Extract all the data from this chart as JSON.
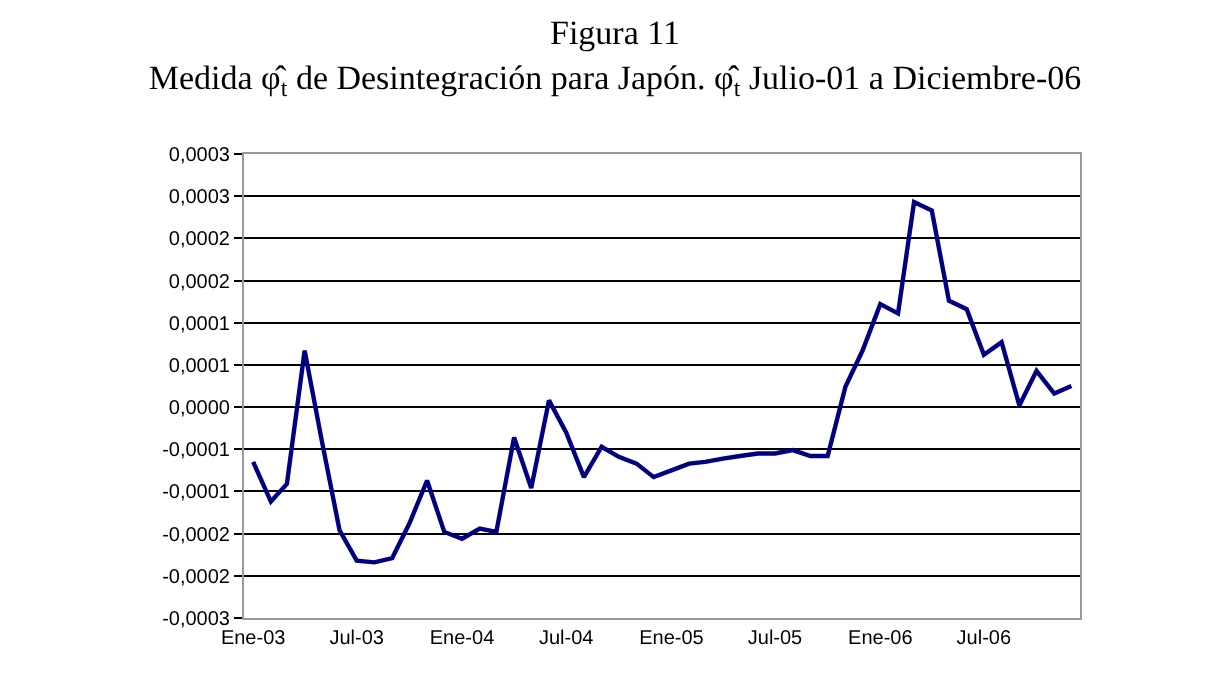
{
  "chart_data": {
    "type": "line",
    "title": "Figura 11",
    "subtitle": "Medida φ̂$_{t}$ de Desintegración para Japón. φ̂$_{t}$ Julio-01 a Diciembre-06",
    "x": [
      "2003-01",
      "2003-02",
      "2003-03",
      "2003-04",
      "2003-05",
      "2003-06",
      "2003-07",
      "2003-08",
      "2003-09",
      "2003-10",
      "2003-11",
      "2003-12",
      "2004-01",
      "2004-02",
      "2004-03",
      "2004-04",
      "2004-05",
      "2004-06",
      "2004-07",
      "2004-08",
      "2004-09",
      "2004-10",
      "2004-11",
      "2004-12",
      "2005-01",
      "2005-02",
      "2005-03",
      "2005-04",
      "2005-05",
      "2005-06",
      "2005-07",
      "2005-08",
      "2005-09",
      "2005-10",
      "2005-11",
      "2005-12",
      "2006-01",
      "2006-02",
      "2006-03",
      "2006-04",
      "2006-05",
      "2006-06",
      "2006-07",
      "2006-08",
      "2006-09",
      "2006-10",
      "2006-11",
      "2006-12"
    ],
    "series": [
      {
        "color": "#000080",
        "values": [
          -6.5e-05,
          -0.000112,
          -9.1e-05,
          6.7e-05,
          -4e-05,
          -0.000146,
          -0.000182,
          -0.000184,
          -0.000179,
          -0.000138,
          -8.7e-05,
          -0.000148,
          -0.000156,
          -0.000144,
          -0.000148,
          -3.6e-05,
          -9.6e-05,
          8e-06,
          -3e-05,
          -8.3e-05,
          -4.7e-05,
          -5.9e-05,
          -6.7e-05,
          -8.3e-05,
          -7.5e-05,
          -6.7e-05,
          -6.5e-05,
          -6.1e-05,
          -5.8e-05,
          -5.5e-05,
          -5.5e-05,
          -5.1e-05,
          -5.8e-05,
          -5.8e-05,
          2.4e-05,
          6.7e-05,
          0.000122,
          0.000111,
          0.000243,
          0.000233,
          0.000126,
          0.000116,
          6.2e-05,
          7.7e-05,
          2e-06,
          4.3e-05,
          1.6e-05,
          2.5e-05
        ]
      }
    ],
    "xlim": [
      "2002-12-16",
      "2006-12-16"
    ],
    "xticks": [
      {
        "value": "2003-01",
        "label": "Ene-03"
      },
      {
        "value": "2003-07",
        "label": "Jul-03"
      },
      {
        "value": "2004-01",
        "label": "Ene-04"
      },
      {
        "value": "2004-07",
        "label": "Jul-04"
      },
      {
        "value": "2005-01",
        "label": "Ene-05"
      },
      {
        "value": "2005-07",
        "label": "Jul-05"
      },
      {
        "value": "2006-01",
        "label": "Ene-06"
      },
      {
        "value": "2006-07",
        "label": "Jul-06"
      }
    ],
    "ylim": [
      -0.00025,
      0.0003
    ],
    "yticks": [
      {
        "value": -0.00025,
        "label": "-0,0003"
      },
      {
        "value": -0.0002,
        "label": "-0,0002"
      },
      {
        "value": -0.00015,
        "label": "-0,0002"
      },
      {
        "value": -0.0001,
        "label": "-0,0001"
      },
      {
        "value": -5e-05,
        "label": "-0,0001"
      },
      {
        "value": 0,
        "label": "0,0000"
      },
      {
        "value": 5e-05,
        "label": "0,0001"
      },
      {
        "value": 0.0001,
        "label": "0,0001"
      },
      {
        "value": 0.00015,
        "label": "0,0002"
      },
      {
        "value": 0.0002,
        "label": "0,0002"
      },
      {
        "value": 0.00025,
        "label": "0,0003"
      },
      {
        "value": 0.0003,
        "label": "0,0003"
      }
    ],
    "grid": "y",
    "marker": "none",
    "line_style": "solid"
  }
}
